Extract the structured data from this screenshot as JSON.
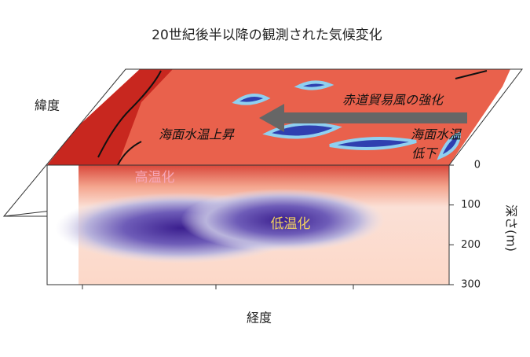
{
  "title": "20世紀後半以降の観測された気候変化",
  "axes": {
    "latitude_label": "緯度",
    "longitude_label": "経度",
    "depth_label": "深さ(m)",
    "depth_ticks": [
      0,
      100,
      200,
      300
    ]
  },
  "annotations": {
    "trade_winds": "赤道貿易風の強化",
    "sst_rise": "海面水温上昇",
    "sst_fall_line1": "海面水温",
    "sst_fall_line2": "低下",
    "warming": "高温化",
    "cooling": "低温化"
  }
}
